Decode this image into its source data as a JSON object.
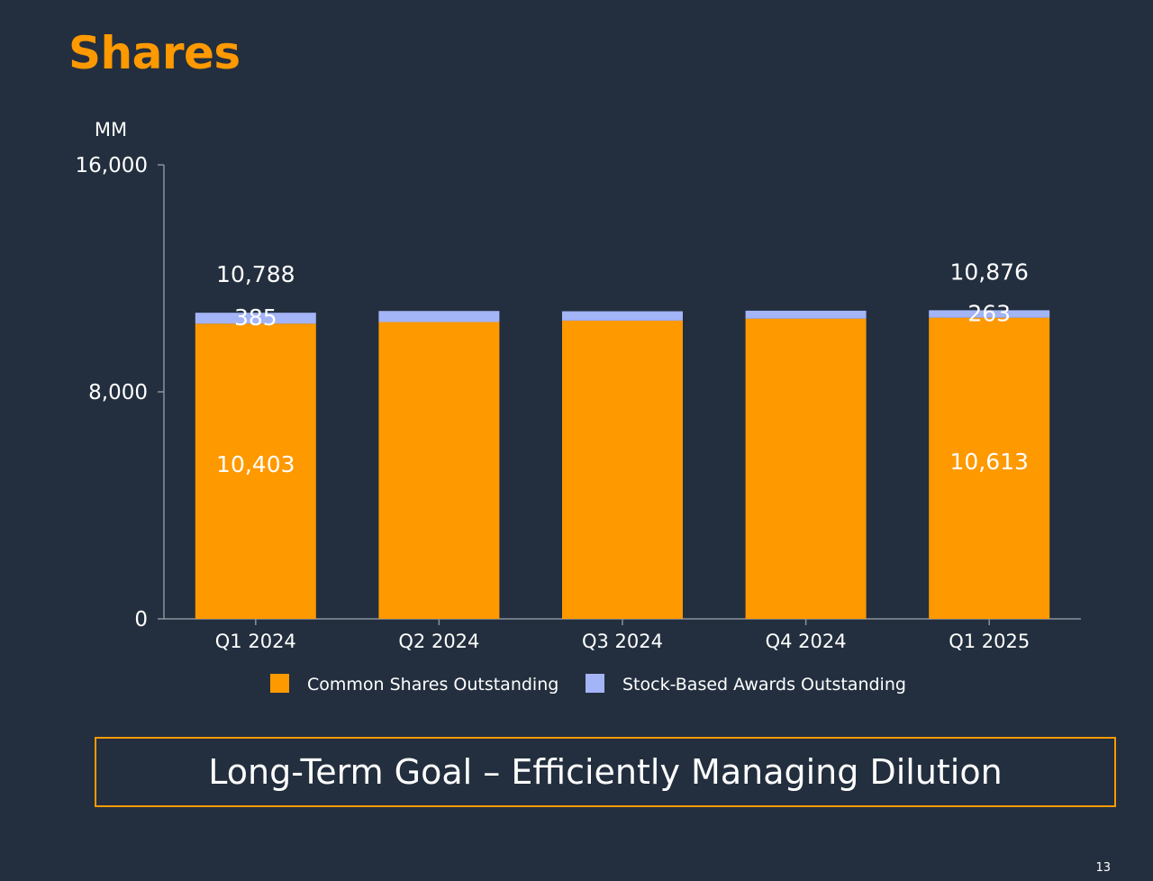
{
  "slide": {
    "title": "Shares",
    "goal_text": "Long-Term Goal – Efficiently Managing Dilution",
    "page_number": "13"
  },
  "colors": {
    "background": "#232f3e",
    "common": "#ff9900",
    "awards": "#a3b4f7",
    "axis": "#8a929c",
    "text": "#ffffff"
  },
  "chart_data": {
    "type": "bar",
    "stacked": true,
    "title": "",
    "ylabel": "MM",
    "xlabel": "",
    "ylim": [
      0,
      16000
    ],
    "yticks": [
      0,
      8000,
      16000
    ],
    "ytick_labels": [
      "0",
      "8,000",
      "16,000"
    ],
    "categories": [
      "Q1 2024",
      "Q2 2024",
      "Q3 2024",
      "Q4 2024",
      "Q1 2025"
    ],
    "series": [
      {
        "name": "Common Shares Outstanding",
        "color": "#ff9900",
        "values": [
          10403,
          10460,
          10510,
          10580,
          10613
        ],
        "labels": [
          "10,403",
          "",
          "",
          "",
          "10,613"
        ]
      },
      {
        "name": "Stock-Based Awards Outstanding",
        "color": "#a3b4f7",
        "values": [
          385,
          390,
          330,
          280,
          263
        ],
        "labels": [
          "385",
          "",
          "",
          "",
          "263"
        ]
      }
    ],
    "totals": [
      10788,
      10850,
      10840,
      10860,
      10876
    ],
    "total_labels": [
      "10,788",
      "",
      "",
      "",
      "10,876"
    ],
    "legend": [
      "Common Shares Outstanding",
      "Stock-Based Awards Outstanding"
    ],
    "legend_position": "bottom"
  }
}
